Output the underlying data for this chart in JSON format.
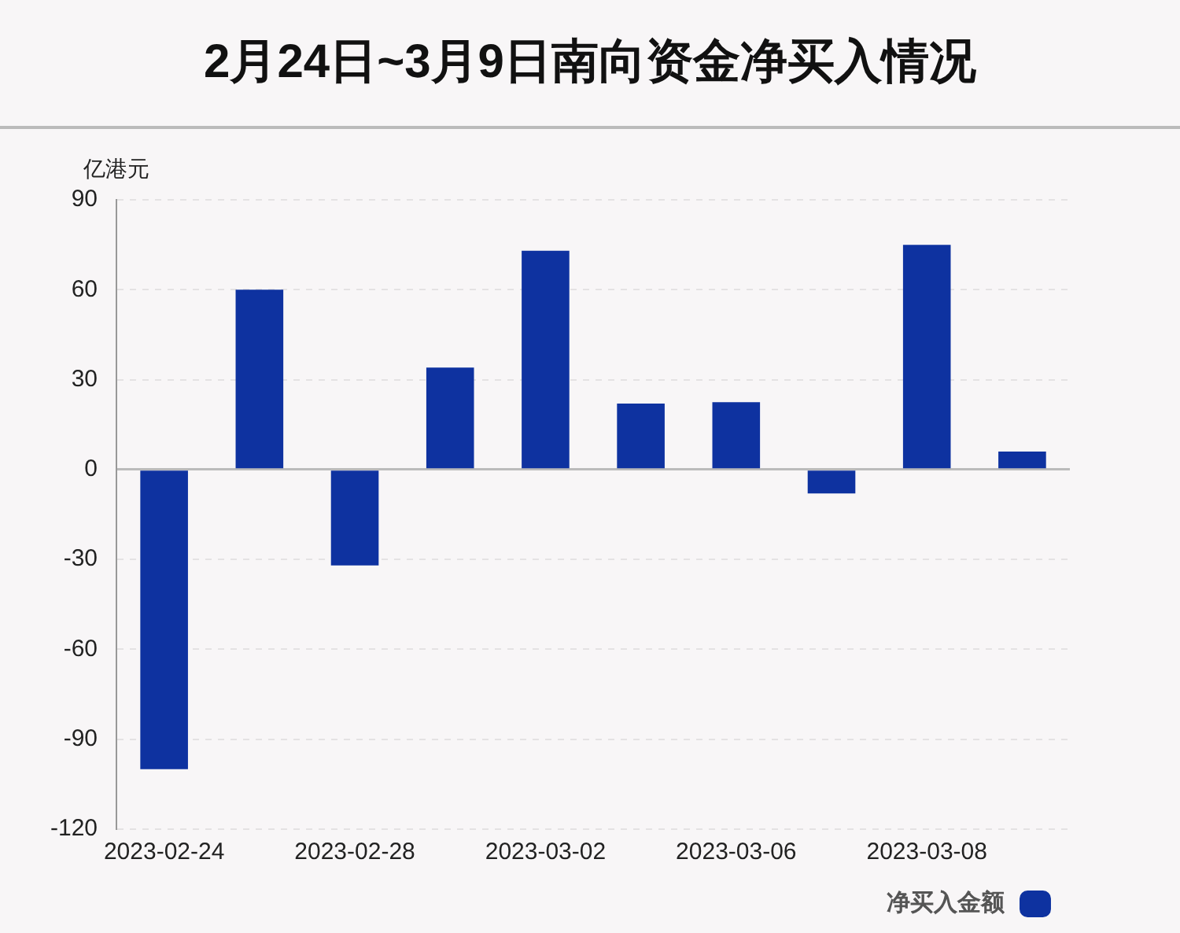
{
  "chart_data": {
    "type": "bar",
    "title": "2月24日~3月9日南向资金净买入情况",
    "ylabel": "亿港元",
    "categories": [
      "2023-02-24",
      null,
      "2023-02-28",
      null,
      "2023-03-02",
      null,
      "2023-03-06",
      null,
      "2023-03-08",
      null
    ],
    "series": [
      {
        "name": "净买入金额",
        "color": "#0e32a0",
        "values": [
          -100,
          60,
          -32,
          34,
          73,
          22,
          22.5,
          -8,
          75,
          6
        ]
      }
    ],
    "ylim": [
      -120,
      90
    ],
    "yticks": [
      -120,
      -90,
      -60,
      -30,
      0,
      30,
      60,
      90
    ],
    "grid": "y",
    "legend": "bottom right"
  }
}
